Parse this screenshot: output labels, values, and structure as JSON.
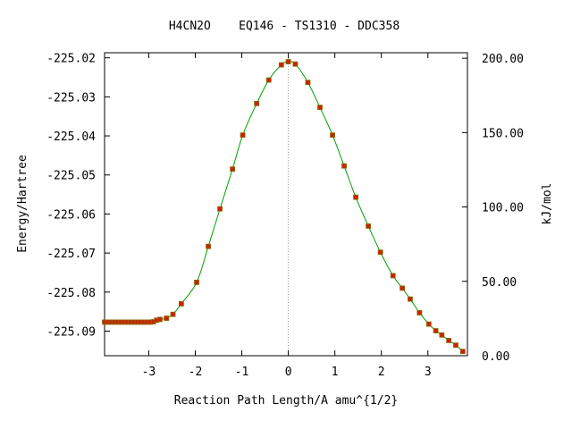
{
  "chart_data": {
    "type": "scatter",
    "title": "H4CN2O    EQ146 - TS1310 - DDC358",
    "xlabel": "Reaction Path Length/A amu^{1/2}",
    "ylabel_left": "Energy/Hartree",
    "ylabel_right": "kJ/mol",
    "xlim": [
      -3.95,
      3.85
    ],
    "ylim": [
      -225.0963,
      -225.0187
    ],
    "y2lim": [
      0,
      203.7
    ],
    "x_ticks": [
      -3,
      -2,
      -1,
      0,
      1,
      2,
      3
    ],
    "x_tick_labels": [
      "-3",
      "-2",
      "-1",
      "0",
      "1",
      "2",
      "3"
    ],
    "y_ticks": [
      -225.02,
      -225.03,
      -225.04,
      -225.05,
      -225.06,
      -225.07,
      -225.08,
      -225.09
    ],
    "y_tick_labels": [
      "-225.02",
      "-225.03",
      "-225.04",
      "-225.05",
      "-225.06",
      "-225.07",
      "-225.08",
      "-225.09"
    ],
    "y2_ticks": [
      0,
      50,
      100,
      150,
      200
    ],
    "y2_tick_labels": [
      "0.00",
      "50.00",
      "100.00",
      "150.00",
      "200.00"
    ],
    "ts_marker_x": 0,
    "grid": false,
    "colors": {
      "curve": "#00a000",
      "points": "#cc2200",
      "point_edge": "#8a6a00",
      "ts_line": "#999999"
    },
    "points": [
      {
        "x": -3.95,
        "y": -225.0877
      },
      {
        "x": -3.88,
        "y": -225.0877
      },
      {
        "x": -3.81,
        "y": -225.0877
      },
      {
        "x": -3.74,
        "y": -225.0877
      },
      {
        "x": -3.67,
        "y": -225.0877
      },
      {
        "x": -3.6,
        "y": -225.0877
      },
      {
        "x": -3.53,
        "y": -225.0877
      },
      {
        "x": -3.46,
        "y": -225.0877
      },
      {
        "x": -3.39,
        "y": -225.0877
      },
      {
        "x": -3.32,
        "y": -225.0877
      },
      {
        "x": -3.25,
        "y": -225.0877
      },
      {
        "x": -3.18,
        "y": -225.0877
      },
      {
        "x": -3.11,
        "y": -225.0877
      },
      {
        "x": -3.04,
        "y": -225.0877
      },
      {
        "x": -2.97,
        "y": -225.0877
      },
      {
        "x": -2.9,
        "y": -225.0876
      },
      {
        "x": -2.83,
        "y": -225.0872
      },
      {
        "x": -2.76,
        "y": -225.087
      },
      {
        "x": -2.62,
        "y": -225.0867
      },
      {
        "x": -2.48,
        "y": -225.0857
      },
      {
        "x": -2.3,
        "y": -225.083
      },
      {
        "x": -1.97,
        "y": -225.0775
      },
      {
        "x": -1.72,
        "y": -225.0683
      },
      {
        "x": -1.47,
        "y": -225.0587
      },
      {
        "x": -1.2,
        "y": -225.0485
      },
      {
        "x": -0.98,
        "y": -225.0398
      },
      {
        "x": -0.68,
        "y": -225.0317
      },
      {
        "x": -0.42,
        "y": -225.0257
      },
      {
        "x": -0.15,
        "y": -225.0218
      },
      {
        "x": 0.0,
        "y": -225.021
      },
      {
        "x": 0.15,
        "y": -225.0216
      },
      {
        "x": 0.42,
        "y": -225.0263
      },
      {
        "x": 0.68,
        "y": -225.0327
      },
      {
        "x": 0.95,
        "y": -225.0398
      },
      {
        "x": 1.2,
        "y": -225.0477
      },
      {
        "x": 1.45,
        "y": -225.0557
      },
      {
        "x": 1.72,
        "y": -225.0631
      },
      {
        "x": 1.98,
        "y": -225.0698
      },
      {
        "x": 2.25,
        "y": -225.0758
      },
      {
        "x": 2.45,
        "y": -225.079
      },
      {
        "x": 2.62,
        "y": -225.0818
      },
      {
        "x": 2.82,
        "y": -225.0853
      },
      {
        "x": 3.02,
        "y": -225.0882
      },
      {
        "x": 3.17,
        "y": -225.0899
      },
      {
        "x": 3.3,
        "y": -225.091
      },
      {
        "x": 3.45,
        "y": -225.0924
      },
      {
        "x": 3.6,
        "y": -225.0936
      },
      {
        "x": 3.75,
        "y": -225.0952
      }
    ]
  }
}
